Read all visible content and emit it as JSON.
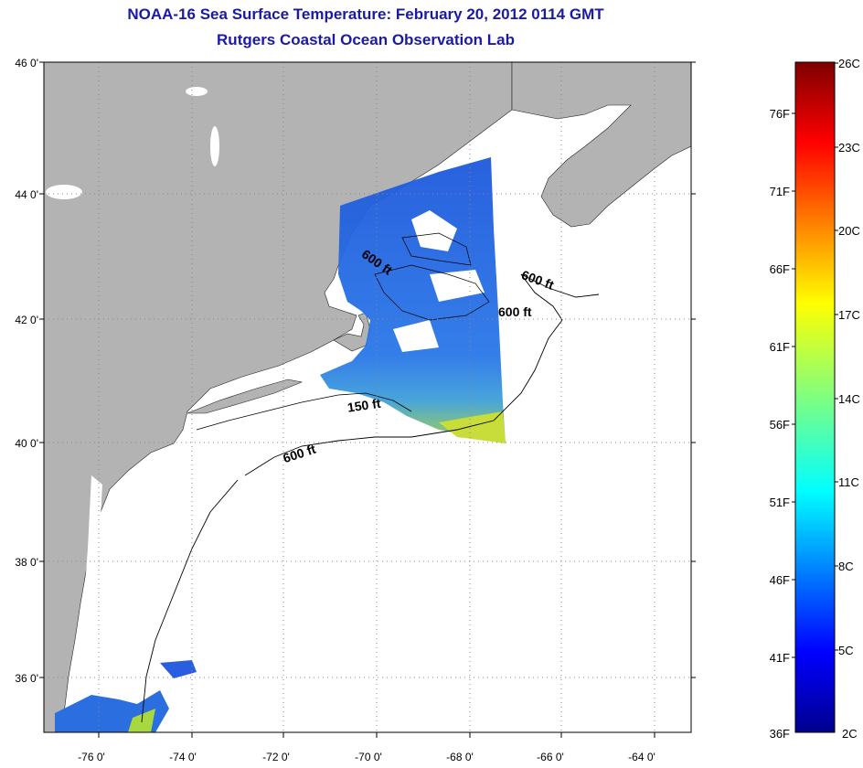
{
  "title": "NOAA-16 Sea Surface Temperature:  February 20, 2012 0114 GMT",
  "subtitle": "Rutgers Coastal Ocean Observation Lab",
  "lat_labels": [
    "46 0'",
    "44 0'",
    "42 0'",
    "40 0'",
    "38 0'",
    "36 0'"
  ],
  "lon_labels": [
    "-76 0'",
    "-74 0'",
    "-72 0'",
    "-70 0'",
    "-68 0'",
    "-66 0'",
    "-64 0'"
  ],
  "contour_labels": [
    "600 ft",
    "600 ft",
    "600 ft",
    "150 ft",
    "600 ft"
  ],
  "colorbar": {
    "fahrenheit_labels": [
      "76F",
      "71F",
      "66F",
      "61F",
      "56F",
      "51F",
      "46F",
      "41F",
      "36F"
    ],
    "celsius_labels": [
      "26C",
      "23C",
      "20C",
      "17C",
      "14C",
      "11C",
      "8C",
      "5C",
      "2C"
    ],
    "range_c": [
      2,
      26
    ],
    "colormap": "jet"
  },
  "colors": {
    "land": "#b3b3b3",
    "title": "#1a1aa6",
    "sst_cold": "#1f5fe0",
    "sst_warm": "#c8e03a"
  }
}
